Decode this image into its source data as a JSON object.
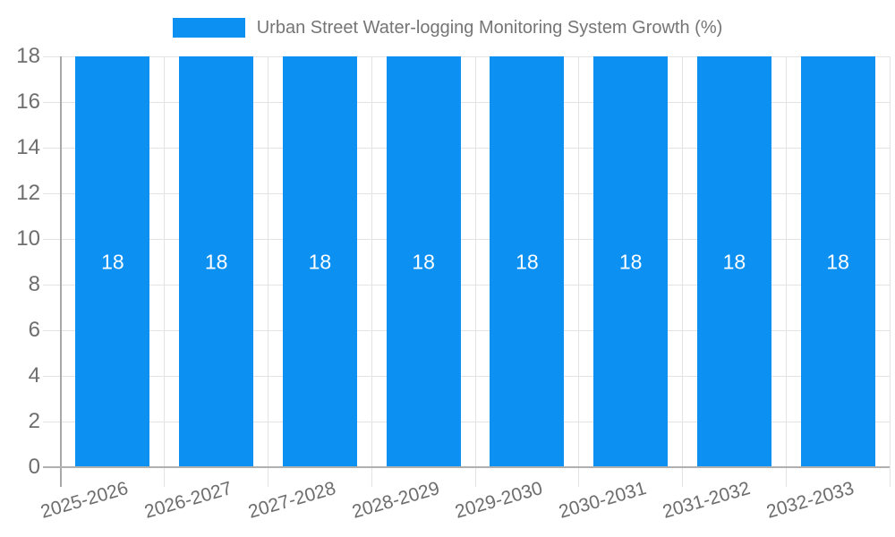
{
  "chart_data": {
    "type": "bar",
    "title": "Urban Street Water-logging Monitoring System Growth (%)",
    "categories": [
      "2025-2026",
      "2026-2027",
      "2027-2028",
      "2028-2029",
      "2029-2030",
      "2030-2031",
      "2031-2032",
      "2032-2033"
    ],
    "values": [
      18,
      18,
      18,
      18,
      18,
      18,
      18,
      18
    ],
    "bar_labels": [
      "18",
      "18",
      "18",
      "18",
      "18",
      "18",
      "18",
      "18"
    ],
    "xlabel": "",
    "ylabel": "",
    "ylim": [
      0,
      18
    ],
    "yticks": [
      0,
      2,
      4,
      6,
      8,
      10,
      12,
      14,
      16,
      18
    ],
    "grid": true,
    "legend_position": "top-center",
    "colors": {
      "bar": "#0c90f2",
      "grid_line": "#e3e3e3",
      "axis_line": "#b0b0b0",
      "y_axis_line": "#a8a8a8",
      "tick_label": "#6e6e6e",
      "legend_text": "#757575",
      "bar_label_text": "#ffffff",
      "background": "#ffffff"
    }
  }
}
